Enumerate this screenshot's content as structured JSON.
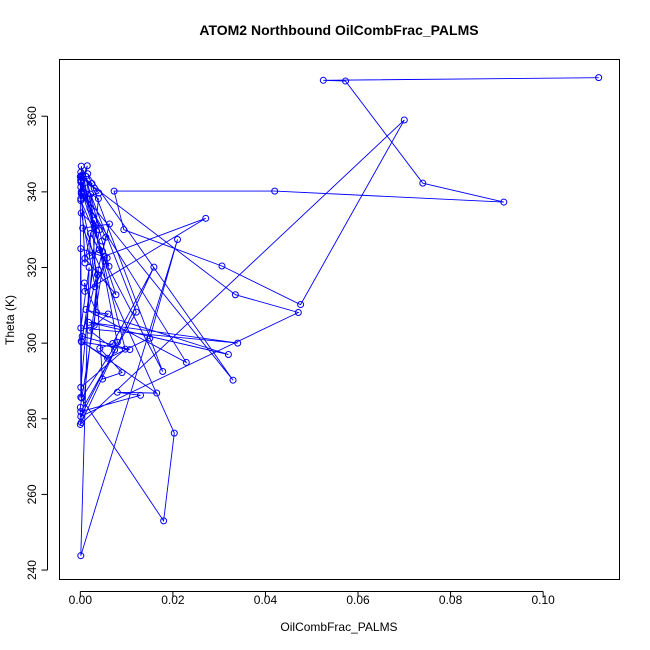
{
  "chart_data": {
    "type": "line",
    "title": "ATOM2 Northbound OilCombFrac_PALMS",
    "xlabel": "OilCombFrac_PALMS",
    "ylabel": "Theta (K)",
    "xlim": [
      -0.0045,
      0.1165
    ],
    "ylim": [
      237.5,
      375.0
    ],
    "xticks": [
      0.0,
      0.02,
      0.04,
      0.06,
      0.08,
      0.1
    ],
    "xtick_labels": [
      "0.00",
      "0.02",
      "0.04",
      "0.06",
      "0.08",
      "0.10"
    ],
    "yticks": [
      240,
      260,
      280,
      300,
      320,
      340,
      360
    ],
    "ytick_labels": [
      "240",
      "260",
      "280",
      "300",
      "320",
      "340",
      "360"
    ],
    "grid": false,
    "legend": "none",
    "color": "#0000ff",
    "series": [
      {
        "x": [
          0.112,
          0.0525,
          0.0573,
          0.074,
          0.0915,
          0.042,
          0.0073,
          0.0094,
          0.0306,
          0.0476,
          0.07,
          0.0,
          0.0,
          0.0052,
          0.0271,
          0.001,
          0.0009,
          0.0035,
          0.006,
          0.002,
          0.0074,
          0.0001,
          0.0471,
          0.0335,
          0.0,
          0.0001,
          0.018,
          0.0203,
          0.0005,
          0.0063,
          0.0048,
          0.0001,
          0.0037,
          0.003,
          0.0039,
          0.0002,
          0.0159,
          0.007,
          0.0042,
          0.009,
          0.0048,
          0.0022,
          0.0121,
          0.0001,
          0.013,
          0.008,
          0.0165,
          0.0002,
          0.0059,
          0.015,
          0.021,
          0.0001,
          0.0019,
          0.0001,
          0.034,
          0.0018,
          0.032,
          0.0012,
          0.0229,
          0.0002,
          0.0003,
          0.0077,
          0.001,
          0.003,
          0.008,
          0.0003,
          0.0001,
          0.0058,
          0.0032,
          0.0002,
          0.0041,
          0.0003,
          0.0107,
          0.0004,
          0.0055,
          0.0002,
          0.033,
          0.0016,
          0.0178,
          0.0022,
          0.002,
          0.0041,
          0.0062,
          0.0047,
          0.0012,
          0.003,
          0.0001,
          0.0001,
          0.0097,
          0.0001,
          0.0039,
          0.0001,
          0.0025,
          0.0001,
          0.001,
          0.0001,
          0.0021,
          0.0002,
          0.0002,
          0.0015,
          0.0003,
          0.0002,
          0.003,
          0.0004,
          0.004,
          0.0001,
          0.0001
        ],
        "y": [
          370.2,
          369.5,
          369.3,
          342.3,
          337.3,
          340.2,
          340.2,
          330.0,
          320.4,
          310.2,
          359.0,
          278.5,
          283.0,
          323.0,
          333.0,
          313.7,
          315.9,
          308.1,
          307.7,
          303.4,
          298.2,
          280.6,
          308.1,
          312.8,
          344.0,
          285.7,
          253.0,
          276.2,
          330.4,
          331.5,
          324.2,
          337.7,
          318.1,
          304.7,
          319.3,
          279.0,
          320.1,
          299.9,
          298.6,
          292.2,
          290.5,
          339.4,
          308.2,
          281.9,
          286.2,
          287.0,
          286.8,
          300.5,
          296.0,
          301.3,
          327.4,
          243.8,
          320.0,
          304.0,
          300.0,
          305.5,
          297.0,
          308.9,
          294.9,
          339.5,
          340.0,
          312.8,
          322.4,
          332.5,
          300.2,
          285.5,
          325.0,
          322.5,
          314.9,
          334.4,
          329.9,
          300.3,
          298.3,
          301.8,
          328.0,
          340.0,
          290.2,
          344.8,
          292.5,
          329.0,
          323.0,
          324.7,
          320.3,
          327.0,
          344.1,
          330.8,
          342.6,
          345.2,
          298.4,
          288.3,
          338.2,
          341.3,
          342.2,
          344.2,
          321.2,
          343.0,
          335.6,
          346.8,
          342.9,
          346.9,
          339.5,
          343.8,
          341.0,
          344.4,
          339.7,
          338.2,
          343.1
        ]
      }
    ]
  }
}
